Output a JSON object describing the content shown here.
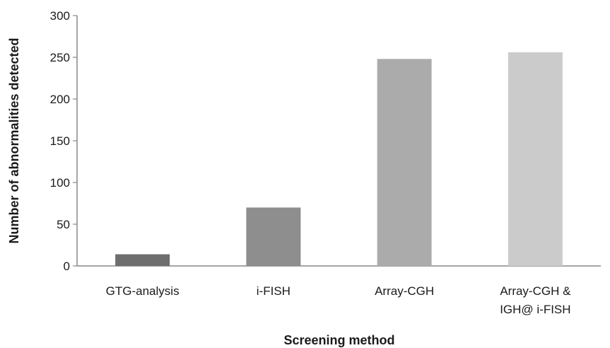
{
  "chart_data": {
    "type": "bar",
    "title": "",
    "xlabel": "Screening method",
    "ylabel": "Number of abnormalities detected",
    "categories": [
      [
        "GTG-analysis"
      ],
      [
        "i-FISH"
      ],
      [
        "Array-CGH"
      ],
      [
        "Array-CGH &",
        "IGH@ i-FISH"
      ]
    ],
    "values": [
      14,
      70,
      248,
      256
    ],
    "colors": [
      "#6e6e6e",
      "#8e8e8e",
      "#ababab",
      "#cbcbcb"
    ],
    "ylim": [
      0,
      300
    ],
    "yticks": [
      0,
      50,
      100,
      150,
      200,
      250,
      300
    ],
    "grid": false,
    "legend": "none"
  }
}
